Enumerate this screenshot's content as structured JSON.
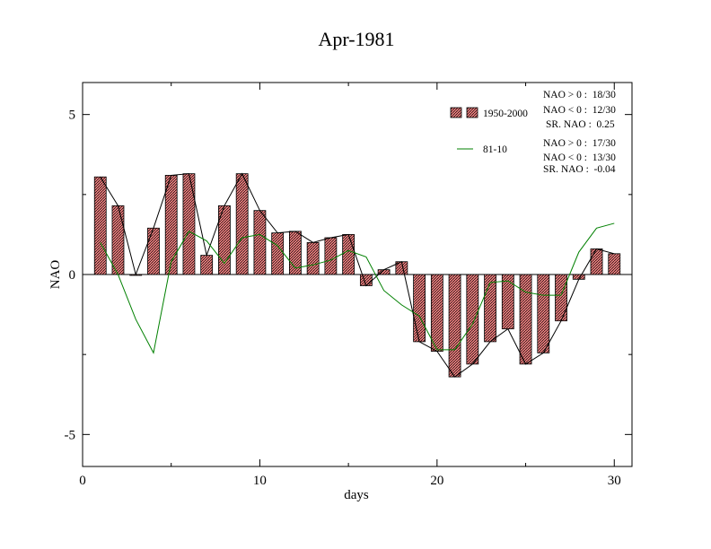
{
  "chart_data": {
    "type": "bar",
    "title": "Apr-1981",
    "xlabel": "days",
    "ylabel": "NAO",
    "xlim": [
      0,
      31
    ],
    "ylim": [
      -6,
      6
    ],
    "x_ticks": [
      0,
      10,
      20,
      30
    ],
    "x_tick_labels": [
      "0",
      "10",
      "20",
      "30"
    ],
    "y_ticks": [
      -5,
      0,
      5
    ],
    "y_tick_labels": [
      "-5",
      "0",
      "5"
    ],
    "grid": false,
    "legend_position": "top-right",
    "colors": {
      "bar_fill": "#f08080",
      "bar_hatch": "#000000",
      "black_line": "#000000",
      "green_line": "#008000"
    },
    "x": [
      1,
      2,
      3,
      4,
      5,
      6,
      7,
      8,
      9,
      10,
      11,
      12,
      13,
      14,
      15,
      16,
      17,
      18,
      19,
      20,
      21,
      22,
      23,
      24,
      25,
      26,
      27,
      28,
      29,
      30
    ],
    "series": [
      {
        "name": "1950-2000",
        "style": "bars-with-line",
        "values": [
          3.05,
          2.15,
          0.0,
          1.45,
          3.1,
          3.15,
          0.6,
          2.15,
          3.15,
          2.0,
          1.3,
          1.35,
          1.0,
          1.15,
          1.25,
          -0.35,
          0.15,
          0.4,
          -2.1,
          -2.4,
          -3.2,
          -2.8,
          -2.1,
          -1.7,
          -2.8,
          -2.45,
          -1.45,
          -0.15,
          0.8,
          0.65
        ]
      },
      {
        "name": "81-10",
        "style": "line",
        "values": [
          1.0,
          0.0,
          -1.4,
          -2.45,
          0.4,
          1.35,
          1.05,
          0.35,
          1.15,
          1.25,
          0.9,
          0.2,
          0.3,
          0.45,
          0.75,
          0.55,
          -0.5,
          -0.95,
          -1.3,
          -2.35,
          -2.35,
          -1.55,
          -0.25,
          -0.2,
          -0.55,
          -0.65,
          -0.65,
          0.7,
          1.45,
          1.6
        ]
      }
    ],
    "stats": {
      "group1": [
        "NAO > 0 :  18/30",
        "NAO < 0 :  12/30",
        "SR. NAO :  0.25"
      ],
      "group2": [
        "NAO > 0 :  17/30",
        "NAO < 0 :  13/30",
        "SR. NAO :  -0.04"
      ]
    }
  }
}
